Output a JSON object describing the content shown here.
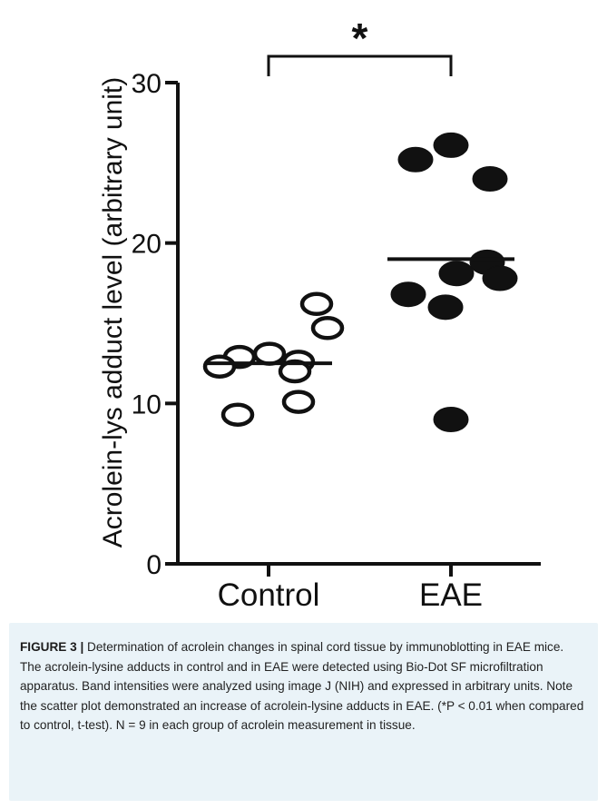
{
  "chart_data": {
    "type": "scatter",
    "title": "",
    "xlabel": "",
    "ylabel": "Acrolein-lys adduct level (arbitrary unit)",
    "ylim": [
      0,
      30
    ],
    "yticks": [
      "0",
      "10",
      "20",
      "30"
    ],
    "categories": [
      "Control",
      "EAE"
    ],
    "series": [
      {
        "group": "Control",
        "marker": "open-circle",
        "values": [
          16.2,
          14.7,
          13.1,
          12.9,
          12.6,
          12.3,
          12.0,
          10.1,
          9.3
        ],
        "mean": 12.5
      },
      {
        "group": "EAE",
        "marker": "filled-circle",
        "values": [
          26.1,
          25.2,
          24.0,
          18.8,
          18.1,
          17.8,
          16.8,
          16.0,
          9.0
        ],
        "mean": 19.0
      }
    ],
    "annotation": "*",
    "colors": {
      "ink": "#111111",
      "caption_bg": "#eaf3f8"
    }
  },
  "caption": {
    "label": "FIGURE 3 |",
    "text": " Determination of acrolein changes in spinal cord tissue by immunoblotting in EAE mice. The acrolein-lysine adducts in control and in EAE were detected using Bio-Dot SF microfiltration apparatus. Band intensities were analyzed using image J (NIH) and expressed in arbitrary units. Note the scatter plot demonstrated an increase of acrolein-lysine adducts in EAE. (*P < 0.01 when compared to control, t-test). N = 9 in each group of acrolein measurement in tissue."
  }
}
